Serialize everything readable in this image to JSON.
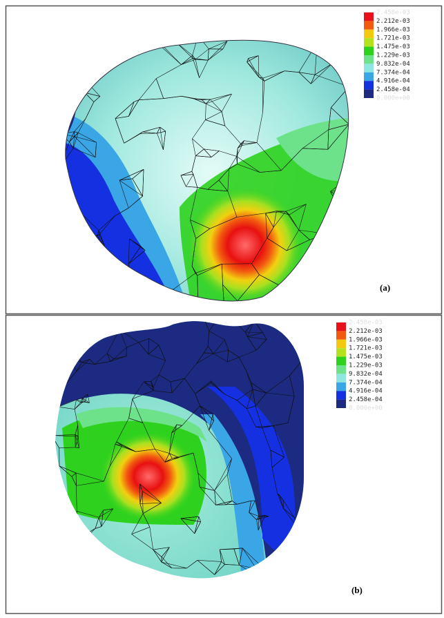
{
  "colors": [
    "#e8101a",
    "#f25a10",
    "#f2c810",
    "#b4e21e",
    "#2ed21e",
    "#6ee28a",
    "#8ee6e0",
    "#3aa6e6",
    "#1430e0",
    "#1c2a82"
  ],
  "panels": [
    {
      "label": "(a)",
      "legend": {
        "labels": [
          "2.458e-03",
          "2.212e-03",
          "1.966e-03",
          "1.721e-03",
          "1.475e-03",
          "1.229e-03",
          "9.832e-04",
          "7.374e-04",
          "4.916e-04",
          "2.458e-04",
          "0.000e+00"
        ]
      }
    },
    {
      "label": "(b)",
      "legend": {
        "labels": [
          "2.458e-03",
          "2.212e-03",
          "1.966e-03",
          "1.721e-03",
          "1.475e-03",
          "1.229e-03",
          "9.832e-04",
          "7.374e-04",
          "4.916e-04",
          "2.458e-04",
          "0.000e+00"
        ]
      }
    }
  ]
}
